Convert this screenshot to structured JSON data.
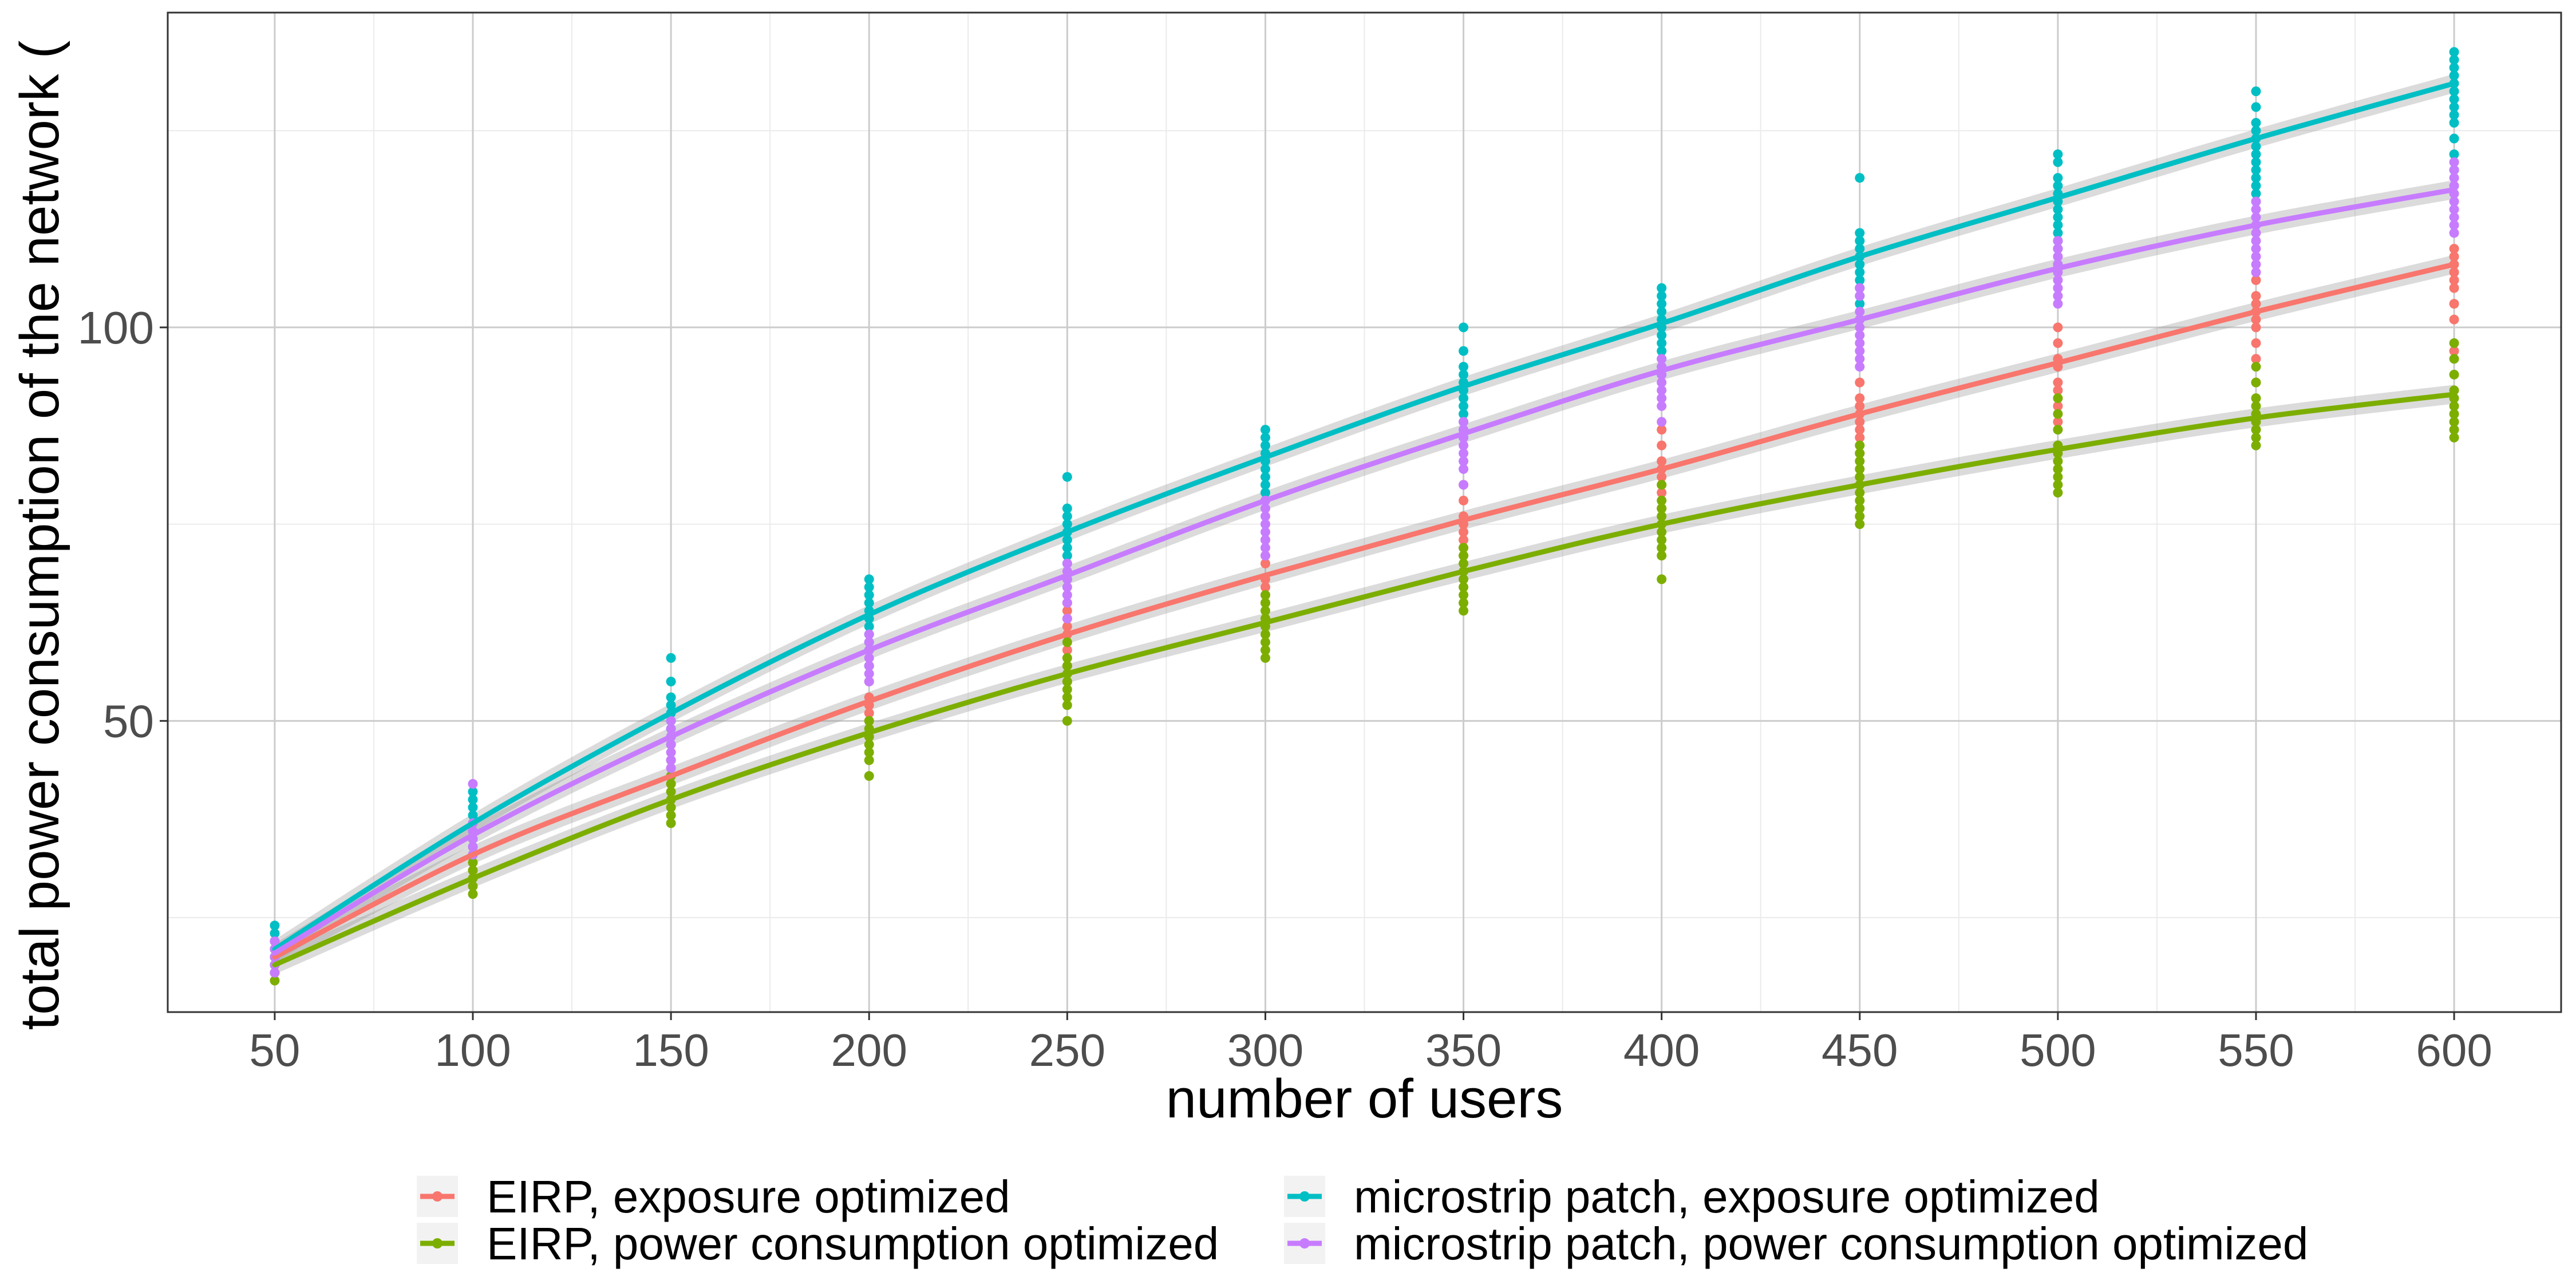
{
  "chart_data": {
    "type": "scatter",
    "title": "",
    "xlabel": "number of users",
    "ylabel": "total power consumption of the network (",
    "xlim": [
      23,
      627
    ],
    "ylim": [
      13,
      140
    ],
    "x_ticks": [
      50,
      100,
      150,
      200,
      250,
      300,
      350,
      400,
      450,
      500,
      550,
      600
    ],
    "y_ticks": [
      50,
      100
    ],
    "grid": true,
    "legend_position": "bottom",
    "x": [
      50,
      100,
      150,
      200,
      250,
      300,
      350,
      400,
      450,
      500,
      550,
      600
    ],
    "series": [
      {
        "name": "EIRP, exposure optimized",
        "color": "#f8766d",
        "fit": [
          20,
          33,
          43,
          52.5,
          61,
          68.5,
          75.5,
          82,
          89,
          95.5,
          102,
          108
        ],
        "points": [
          [
            18,
            19,
            20,
            21,
            22
          ],
          [
            29,
            31,
            32,
            33,
            34,
            35
          ],
          [
            40,
            42,
            43,
            44,
            45,
            47,
            48
          ],
          [
            48,
            50,
            51,
            52,
            53,
            55,
            57,
            59
          ],
          [
            55,
            57,
            59,
            61,
            62,
            63,
            64,
            65
          ],
          [
            63,
            65,
            66,
            67,
            68,
            70,
            71,
            73
          ],
          [
            71,
            72,
            73,
            74,
            75,
            76,
            78,
            80
          ],
          [
            77,
            79,
            80,
            81,
            82,
            83,
            85,
            87
          ],
          [
            84,
            86,
            87,
            88,
            89,
            90,
            91,
            93
          ],
          [
            88,
            90,
            92,
            93,
            95,
            96,
            98,
            100
          ],
          [
            93,
            96,
            98,
            100,
            101,
            102,
            103,
            104,
            106
          ],
          [
            97,
            101,
            103,
            105,
            106,
            107,
            108,
            109,
            110
          ]
        ]
      },
      {
        "name": "EIRP, power consumption optimized",
        "color": "#7cae00",
        "fit": [
          19,
          30,
          40,
          48.5,
          56,
          62.5,
          69,
          75,
          80,
          84.5,
          88.5,
          91.5
        ],
        "points": [
          [
            17,
            18,
            19,
            20,
            21
          ],
          [
            28,
            29,
            30,
            31,
            32,
            33
          ],
          [
            37,
            38,
            39,
            40,
            41,
            42,
            43
          ],
          [
            43,
            45,
            46,
            47,
            48,
            49,
            50
          ],
          [
            50,
            52,
            53,
            54,
            55,
            56,
            57,
            58,
            60
          ],
          [
            58,
            59,
            60,
            61,
            62,
            63,
            64,
            65,
            66
          ],
          [
            64,
            65,
            66,
            67,
            68,
            69,
            70,
            71,
            72
          ],
          [
            68,
            71,
            72,
            73,
            74,
            75,
            76,
            77,
            78,
            80
          ],
          [
            75,
            76,
            77,
            78,
            79,
            80,
            81,
            82,
            83,
            84,
            85
          ],
          [
            79,
            80,
            81,
            82,
            83,
            84,
            85,
            87,
            89,
            91
          ],
          [
            85,
            86,
            87,
            88,
            89,
            90,
            91,
            93,
            95
          ],
          [
            86,
            87,
            88,
            89,
            90,
            91,
            92,
            94,
            96,
            98
          ]
        ]
      },
      {
        "name": "microstrip patch, exposure optimized",
        "color": "#00bfc4",
        "fit": [
          21,
          37,
          51,
          63.5,
          74,
          83.5,
          92.5,
          100.5,
          109,
          116.5,
          124,
          131
        ],
        "points": [
          [
            19,
            20,
            21,
            22,
            23,
            24
          ],
          [
            33,
            34,
            35,
            36,
            37,
            38,
            39,
            40,
            41
          ],
          [
            45,
            47,
            48,
            49,
            50,
            51,
            52,
            53,
            55,
            58
          ],
          [
            57,
            59,
            60,
            61,
            62,
            63,
            64,
            65,
            66,
            67,
            68
          ],
          [
            68,
            70,
            71,
            72,
            73,
            74,
            75,
            76,
            77,
            81
          ],
          [
            78,
            79,
            80,
            81,
            82,
            83,
            84,
            85,
            86,
            87
          ],
          [
            86,
            87,
            88,
            89,
            90,
            91,
            92,
            93,
            94,
            95,
            97,
            100
          ],
          [
            94,
            95,
            96,
            97,
            98,
            99,
            100,
            101,
            102,
            103,
            104,
            105
          ],
          [
            101,
            103,
            104,
            105,
            106,
            107,
            108,
            109,
            110,
            111,
            112,
            119
          ],
          [
            108,
            110,
            111,
            112,
            113,
            114,
            115,
            116,
            117,
            118,
            119,
            121,
            122
          ],
          [
            116,
            117,
            118,
            119,
            120,
            121,
            122,
            123,
            124,
            125,
            126,
            128,
            130
          ],
          [
            120,
            122,
            124,
            126,
            127,
            128,
            129,
            130,
            131,
            132,
            133,
            134,
            135
          ]
        ]
      },
      {
        "name": "microstrip patch, power consumption optimized",
        "color": "#c77cff",
        "fit": [
          20.5,
          35.5,
          48,
          59,
          68.5,
          78,
          86.5,
          94.5,
          101,
          107.5,
          113,
          117.5
        ],
        "points": [
          [
            18,
            19,
            20,
            21,
            22
          ],
          [
            33,
            34,
            35,
            36,
            37,
            42
          ],
          [
            44,
            45,
            46,
            47,
            48,
            49,
            50
          ],
          [
            55,
            56,
            57,
            58,
            59,
            60,
            61
          ],
          [
            63,
            65,
            66,
            67,
            68,
            69,
            70
          ],
          [
            71,
            72,
            73,
            74,
            75,
            76,
            77,
            78
          ],
          [
            80,
            82,
            83,
            84,
            85,
            86,
            87,
            88
          ],
          [
            88,
            90,
            91,
            92,
            93,
            94,
            95,
            96
          ],
          [
            95,
            96,
            97,
            98,
            99,
            100,
            101,
            102,
            104,
            105
          ],
          [
            103,
            104,
            105,
            106,
            107,
            108,
            109,
            110,
            111
          ],
          [
            107,
            108,
            109,
            110,
            111,
            112,
            113,
            114,
            115,
            116
          ],
          [
            112,
            113,
            114,
            115,
            116,
            117,
            118,
            119,
            120,
            121
          ]
        ]
      }
    ]
  }
}
